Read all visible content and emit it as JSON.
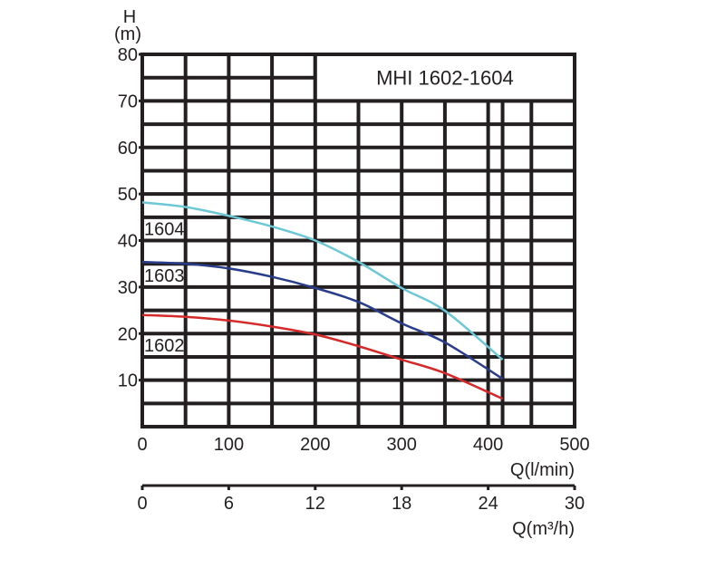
{
  "chart_data": {
    "type": "line",
    "title": "MHI 1602-1604",
    "ylabel_top": "H",
    "ylabel_unit": "(m)",
    "xlabel": "Q(l/min)",
    "xlabel2": "Q(m³/h)",
    "ylim": [
      0,
      80
    ],
    "xlim": [
      0,
      500
    ],
    "xlim2": [
      0,
      30
    ],
    "grid": true,
    "yticks": [
      80,
      70,
      60,
      50,
      40,
      30,
      20,
      10
    ],
    "ytick_labels": [
      "80",
      "70",
      "60",
      "50",
      "40",
      "30",
      "20",
      "10"
    ],
    "xticks": [
      0,
      100,
      200,
      300,
      400,
      500
    ],
    "xtick_labels": [
      "0",
      "100",
      "200",
      "300",
      "400",
      "500"
    ],
    "xticks2": [
      0,
      6,
      12,
      18,
      24,
      30
    ],
    "xtick2_labels": [
      "0",
      "6",
      "12",
      "18",
      "24",
      "30"
    ],
    "grid_y": [
      5,
      10,
      15,
      20,
      25,
      30,
      35,
      40,
      45,
      50,
      55,
      60,
      65,
      70,
      75,
      80
    ],
    "grid_x": [
      0,
      50,
      100,
      150,
      200,
      250,
      300,
      350,
      400,
      416.7,
      450,
      500
    ],
    "series": [
      {
        "name": "1604",
        "color": "#6cc8d4",
        "x": [
          0,
          50,
          100,
          150,
          200,
          250,
          300,
          350,
          416.7
        ],
        "y": [
          48.2,
          47.2,
          45.3,
          43.0,
          40.0,
          35.4,
          29.8,
          24.9,
          14.4
        ]
      },
      {
        "name": "1603",
        "color": "#2a3d8a",
        "x": [
          0,
          50,
          100,
          150,
          200,
          250,
          300,
          350,
          416.7
        ],
        "y": [
          35.4,
          35.0,
          34.0,
          32.2,
          29.8,
          26.8,
          22.2,
          18.1,
          10.3
        ]
      },
      {
        "name": "1602",
        "color": "#d42a2a",
        "x": [
          0,
          50,
          100,
          150,
          200,
          250,
          300,
          350,
          416.7
        ],
        "y": [
          24.0,
          23.6,
          22.8,
          21.5,
          19.8,
          17.3,
          14.4,
          11.5,
          6.0
        ]
      }
    ],
    "curve_labels": [
      {
        "text": "1604",
        "at_y": 42.5
      },
      {
        "text": "1603",
        "at_y": 32.5
      },
      {
        "text": "1602",
        "at_y": 17.5
      }
    ]
  }
}
